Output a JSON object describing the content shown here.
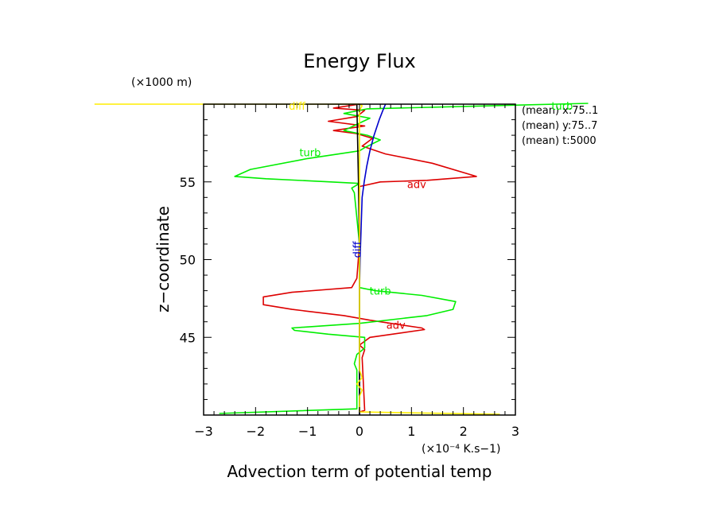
{
  "chart_data": {
    "type": "line",
    "title": "Energy Flux",
    "xlabel": "Advection term of potential temp",
    "ylabel": "z−coordinate",
    "x_multiplier": "(×10⁻⁴ K.s−1)",
    "y_multiplier": "(×1000 m)",
    "xlim": [
      -3,
      3
    ],
    "ylim": [
      40,
      60
    ],
    "xticks": [
      "−3",
      "−2",
      "−1",
      "0",
      "1",
      "2",
      "3"
    ],
    "yticks": [
      "45",
      "50",
      "55"
    ],
    "ytick_values": [
      45,
      50,
      55
    ],
    "xtick_values": [
      -3,
      -2,
      -1,
      0,
      1,
      2,
      3
    ],
    "grid": false,
    "annotations": [
      "(mean) x:75..1",
      "(mean) y:75..7",
      "(mean) t:5000"
    ],
    "series": [
      {
        "name": "adv",
        "color": "#dd0000",
        "points": [
          [
            0,
            40.2
          ],
          [
            0.1,
            40.3
          ],
          [
            0.05,
            43.7
          ],
          [
            0.1,
            44.2
          ],
          [
            0.0,
            44.5
          ],
          [
            0.2,
            45.0
          ],
          [
            1.25,
            45.5
          ],
          [
            1.2,
            45.6
          ],
          [
            0.2,
            46.1
          ],
          [
            -0.3,
            46.4
          ],
          [
            -1.3,
            46.8
          ],
          [
            -1.85,
            47.1
          ],
          [
            -1.85,
            47.6
          ],
          [
            -1.3,
            47.9
          ],
          [
            -0.15,
            48.2
          ],
          [
            -0.05,
            48.8
          ],
          [
            0.0,
            51.0
          ],
          [
            0.0,
            54.7
          ],
          [
            0.4,
            55.0
          ],
          [
            1.3,
            55.1
          ],
          [
            2.25,
            55.35
          ],
          [
            1.4,
            56.2
          ],
          [
            0.5,
            56.8
          ],
          [
            0.05,
            57.3
          ],
          [
            0.25,
            57.8
          ],
          [
            -0.05,
            58.1
          ],
          [
            -0.5,
            58.3
          ],
          [
            0.1,
            58.6
          ],
          [
            -0.6,
            58.9
          ],
          [
            -0.05,
            59.2
          ],
          [
            0.1,
            59.6
          ],
          [
            -0.5,
            59.75
          ],
          [
            0.0,
            60.0
          ]
        ]
      },
      {
        "name": "turb",
        "color": "#00ee00",
        "points": [
          [
            -2.7,
            40.1
          ],
          [
            -0.05,
            40.4
          ],
          [
            -0.05,
            42.9
          ],
          [
            -0.1,
            43.3
          ],
          [
            -0.05,
            43.9
          ],
          [
            0.1,
            44.3
          ],
          [
            0.1,
            45.0
          ],
          [
            -0.6,
            45.2
          ],
          [
            -1.25,
            45.45
          ],
          [
            -1.3,
            45.6
          ],
          [
            0.0,
            45.9
          ],
          [
            1.3,
            46.4
          ],
          [
            1.8,
            46.8
          ],
          [
            1.85,
            47.3
          ],
          [
            1.2,
            47.7
          ],
          [
            0.3,
            48.0
          ],
          [
            0.0,
            48.2
          ],
          [
            0.0,
            51.0
          ],
          [
            -0.1,
            54.3
          ],
          [
            -0.15,
            54.6
          ],
          [
            0.0,
            54.9
          ],
          [
            -0.55,
            55.0
          ],
          [
            -1.8,
            55.2
          ],
          [
            -2.4,
            55.35
          ],
          [
            -2.1,
            55.8
          ],
          [
            -1.0,
            56.5
          ],
          [
            0.0,
            57.0
          ],
          [
            0.1,
            57.2
          ],
          [
            0.4,
            57.7
          ],
          [
            0.15,
            58.0
          ],
          [
            -0.3,
            58.3
          ],
          [
            -0.05,
            58.7
          ],
          [
            0.2,
            59.1
          ],
          [
            -0.3,
            59.4
          ],
          [
            0.15,
            59.7
          ],
          [
            4.4,
            60.05
          ]
        ]
      },
      {
        "name": "diff",
        "color": "#0000cc",
        "points": [
          [
            0.0,
            40.0
          ],
          [
            0.0,
            45.0
          ],
          [
            0.0,
            48.0
          ],
          [
            0.01,
            50.0
          ],
          [
            0.03,
            52.0
          ],
          [
            0.05,
            54.0
          ],
          [
            0.09,
            55.0
          ],
          [
            0.14,
            56.0
          ],
          [
            0.2,
            57.0
          ],
          [
            0.28,
            58.0
          ],
          [
            0.38,
            59.0
          ],
          [
            0.45,
            59.6
          ],
          [
            0.5,
            60.0
          ]
        ]
      },
      {
        "name": "",
        "color": "#000000",
        "points": [
          [
            0.0,
            40.0
          ],
          [
            0.0,
            50.0
          ],
          [
            -0.02,
            55.0
          ],
          [
            -0.05,
            60.0
          ]
        ]
      },
      {
        "name": "",
        "color": "#ffee00",
        "points": [
          [
            -5.1,
            60.0
          ],
          [
            0.0,
            60.0
          ],
          [
            0.05,
            59.9
          ],
          [
            0.0,
            59.6
          ],
          [
            0.0,
            42.9
          ],
          [
            0.05,
            42.4
          ],
          [
            -0.05,
            42.0
          ],
          [
            0.05,
            41.6
          ],
          [
            0.0,
            41.2
          ],
          [
            0.0,
            40.2
          ],
          [
            2.7,
            40.05
          ]
        ]
      }
    ],
    "series_labels": [
      {
        "text": "adv",
        "series": 0,
        "x": 1.1,
        "y": 54.85
      },
      {
        "text": "adv",
        "series": 0,
        "x": 0.7,
        "y": 45.8
      },
      {
        "text": "turb",
        "series": 1,
        "x": -0.95,
        "y": 56.9
      },
      {
        "text": "turb",
        "series": 1,
        "x": 0.4,
        "y": 48.0
      },
      {
        "text": "turb",
        "series": 1,
        "x": 3.9,
        "y": 59.9
      },
      {
        "text": "diff",
        "series": 2,
        "x": 0.02,
        "y": 50.9,
        "rotate": -90
      },
      {
        "text": "diff",
        "series": 4,
        "x": -1.2,
        "y": 59.9
      }
    ]
  }
}
